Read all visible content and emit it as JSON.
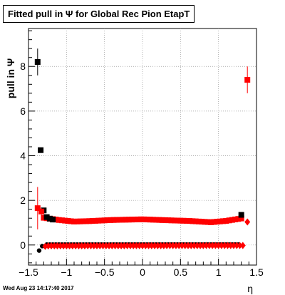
{
  "page": {
    "title": "Fitted pull in Ψ  for Global Rec Pion EtapT",
    "timestamp": "Wed Aug 23 14:17:40 2017"
  },
  "chart_data": {
    "type": "scatter",
    "title": "Fitted pull in Ψ  for Global Rec Pion EtapT",
    "xlabel": "η",
    "ylabel": "pull in  Ψ",
    "xlim": [
      -1.5,
      1.5
    ],
    "ylim": [
      -0.9,
      9.7
    ],
    "x_ticks": [
      -1.5,
      -1,
      -0.5,
      0,
      0.5,
      1,
      1.5
    ],
    "x_tick_labels": [
      "−1.5",
      "−1",
      "−0.5",
      "0",
      "0.5",
      "1",
      "1.5"
    ],
    "y_ticks": [
      0,
      2,
      4,
      6,
      8
    ],
    "y_tick_labels": [
      "0",
      "2",
      "4",
      "6",
      "8"
    ],
    "grid": true,
    "series": [
      {
        "color": "#000000",
        "marker": "square",
        "points": [
          {
            "x": -1.38,
            "y": 8.2,
            "err": 0.6
          },
          {
            "x": -1.34,
            "y": 4.25,
            "err": 0.1
          },
          {
            "x": -1.3,
            "y": 1.55,
            "err": 0.08
          },
          {
            "x": -1.26,
            "y": 1.25,
            "err": 0.05
          },
          {
            "x": -1.22,
            "y": 1.18,
            "err": 0.04
          },
          {
            "x": -1.18,
            "y": 1.14,
            "err": 0.04
          },
          {
            "x": 1.3,
            "y": 1.35,
            "err": 0.08
          }
        ]
      },
      {
        "color": "#000000",
        "marker": "circle",
        "points": [
          {
            "x": -1.36,
            "y": -0.25,
            "err": 0.05
          },
          {
            "x": -1.32,
            "y": -0.05,
            "err": 0.04
          }
        ]
      },
      {
        "color": "#ff0000",
        "marker": "square",
        "points": [
          {
            "x": -1.38,
            "y": 1.65,
            "err": 0.95
          },
          {
            "x": -1.33,
            "y": 1.5,
            "err": 0.15
          },
          {
            "x": 1.38,
            "y": 7.4,
            "err": 0.6
          }
        ]
      },
      {
        "color": "#ff0000",
        "marker": "diamond",
        "points": [
          {
            "x": -1.28,
            "y": -0.06
          },
          {
            "x": 1.38,
            "y": 1.03,
            "err": 0.1
          }
        ]
      }
    ],
    "bands": [
      {
        "color": "#ff0000",
        "marker": "square",
        "x_start": -1.3,
        "x_end": 1.32,
        "step": 0.04,
        "profile": [
          [
            -1.3,
            1.22
          ],
          [
            -1.1,
            1.12
          ],
          [
            -0.9,
            1.05
          ],
          [
            -0.7,
            1.07
          ],
          [
            -0.4,
            1.12
          ],
          [
            0.0,
            1.15
          ],
          [
            0.4,
            1.1
          ],
          [
            0.6,
            1.08
          ],
          [
            0.9,
            1.02
          ],
          [
            1.1,
            1.08
          ],
          [
            1.32,
            1.2
          ]
        ]
      },
      {
        "color": "#000000",
        "marker": "circle",
        "x_start": -1.26,
        "x_end": 1.28,
        "step": 0.04,
        "profile": [
          [
            -1.26,
            0.02
          ],
          [
            1.28,
            0.02
          ]
        ]
      },
      {
        "color": "#ff0000",
        "marker": "diamond",
        "x_start": -1.24,
        "x_end": 1.32,
        "step": 0.04,
        "profile": [
          [
            -1.24,
            -0.04
          ],
          [
            1.32,
            -0.02
          ]
        ]
      }
    ]
  }
}
